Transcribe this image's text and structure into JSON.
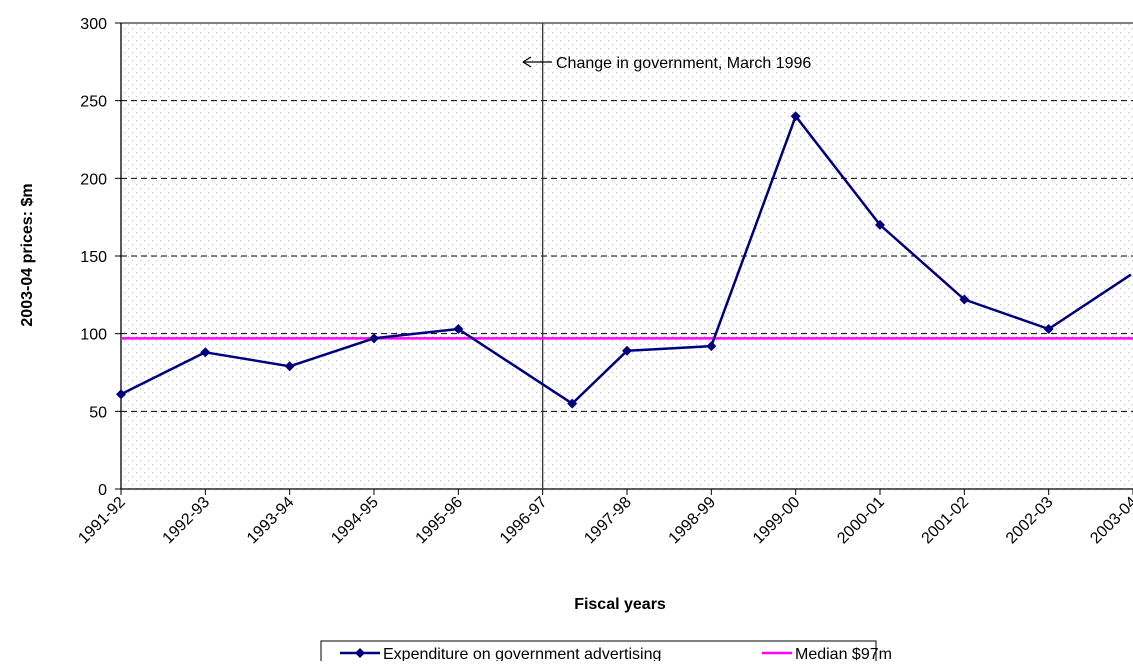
{
  "chart_data": {
    "type": "line",
    "title": "",
    "xlabel": "Fiscal years",
    "ylabel": "2003-04 prices: $m",
    "ylim": [
      0,
      300
    ],
    "yticks": [
      0,
      50,
      100,
      150,
      200,
      250,
      300
    ],
    "grid": "horizontal dashed gridlines",
    "background": "dotted",
    "categories": [
      "1991-92",
      "1992-93",
      "1993-94",
      "1994-95",
      "1995-96",
      "1996-97",
      "1997-98",
      "1998-99",
      "1999-00",
      "2000-01",
      "2001-02",
      "2002-03",
      "2003-04"
    ],
    "series": [
      {
        "name": "Expenditure on government advertising",
        "color": "#00007f",
        "marker": "diamond",
        "points": [
          {
            "x": "1991-92",
            "y": 61
          },
          {
            "x": "1992-93",
            "y": 88
          },
          {
            "x": "1993-94",
            "y": 79
          },
          {
            "x": "1994-95",
            "y": 97
          },
          {
            "x": "1995-96",
            "y": 103
          },
          {
            "x": "1996-97",
            "y": 55
          },
          {
            "x": "1997-98",
            "y": 89
          },
          {
            "x": "1998-99",
            "y": 92
          },
          {
            "x": "1999-00",
            "y": 240
          },
          {
            "x": "2000-01",
            "y": 170
          },
          {
            "x": "2001-02",
            "y": 122
          },
          {
            "x": "2002-03",
            "y": 103
          },
          {
            "x": "2003-04",
            "y": 138
          }
        ]
      },
      {
        "name": "Median $97m",
        "color": "#ff00ff",
        "marker": "none",
        "constant": 97
      }
    ],
    "annotations": [
      {
        "text": "Change in government, March 1996",
        "arrow": "left"
      }
    ],
    "legend_position": "bottom"
  }
}
